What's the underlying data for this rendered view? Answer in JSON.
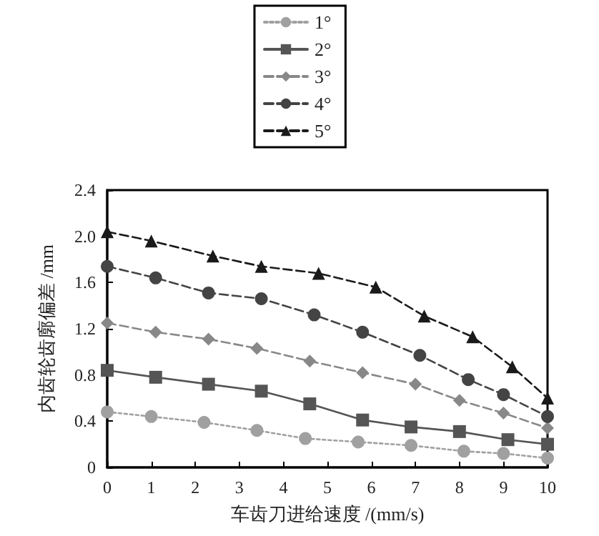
{
  "chart_data": {
    "type": "line",
    "xlabel": "车齿刀进给速度 /(mm/s)",
    "ylabel": "内齿轮齿廓偏差 /mm",
    "xlim": [
      0,
      10
    ],
    "xticks": [
      0,
      1,
      2,
      3,
      4,
      5,
      6,
      7,
      8,
      9,
      10
    ],
    "ylim": [
      0,
      2.4
    ],
    "yticks": [
      0,
      0.4,
      0.8,
      1.2,
      1.6,
      {
        "value": 2,
        "label": "2.0"
      },
      2.4
    ],
    "grid": false,
    "legend": "top",
    "series": [
      {
        "name": "1°",
        "color": "#a0a0a0",
        "marker": "circle",
        "line_style": "dotted",
        "x": [
          0,
          1.0,
          2.2,
          3.4,
          4.5,
          5.7,
          6.9,
          8.1,
          9.0,
          10
        ],
        "values": [
          0.48,
          0.44,
          0.39,
          0.32,
          0.25,
          0.22,
          0.19,
          0.14,
          0.12,
          0.08
        ]
      },
      {
        "name": "2°",
        "color": "#555555",
        "marker": "square",
        "line_style": "solid",
        "x": [
          0,
          1.1,
          2.3,
          3.5,
          4.6,
          5.8,
          6.9,
          8.0,
          9.1,
          10
        ],
        "values": [
          0.84,
          0.78,
          0.72,
          0.66,
          0.55,
          0.41,
          0.35,
          0.31,
          0.24,
          0.2
        ]
      },
      {
        "name": "3°",
        "color": "#888888",
        "marker": "diamond",
        "line_style": "dashed",
        "x": [
          0,
          1.1,
          2.3,
          3.4,
          4.6,
          5.8,
          7.0,
          8.0,
          9.0,
          10
        ],
        "values": [
          1.25,
          1.17,
          1.11,
          1.03,
          0.92,
          0.82,
          0.72,
          0.58,
          0.47,
          0.34
        ]
      },
      {
        "name": "4°",
        "color": "#444444",
        "marker": "circle",
        "line_style": "dashed",
        "x": [
          0,
          1.1,
          2.3,
          3.5,
          4.7,
          5.8,
          7.1,
          8.2,
          9.0,
          10
        ],
        "values": [
          1.74,
          1.64,
          1.51,
          1.46,
          1.32,
          1.17,
          0.97,
          0.76,
          0.63,
          0.44
        ]
      },
      {
        "name": "5°",
        "color": "#1a1a1a",
        "marker": "triangle",
        "line_style": "dashed",
        "x": [
          0,
          1.0,
          2.4,
          3.5,
          4.8,
          6.1,
          7.2,
          8.3,
          9.2,
          10
        ],
        "values": [
          2.04,
          1.96,
          1.83,
          1.74,
          1.68,
          1.56,
          1.31,
          1.13,
          0.87,
          0.6
        ]
      }
    ]
  }
}
